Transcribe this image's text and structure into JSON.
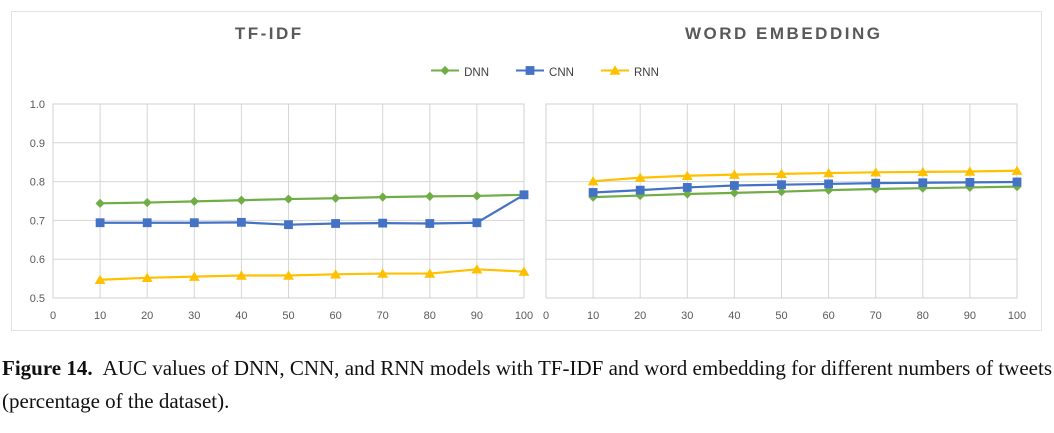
{
  "figure": {
    "caption_label": "Figure 14.",
    "caption_text": "AUC values of DNN, CNN, and RNN models with TF-IDF and word embedding for different numbers of tweets (percentage of the dataset)."
  },
  "legend": [
    {
      "name": "DNN",
      "color": "#70AD47",
      "marker": "diamond"
    },
    {
      "name": "CNN",
      "color": "#4472C4",
      "marker": "square"
    },
    {
      "name": "RNN",
      "color": "#FFC000",
      "marker": "triangle"
    }
  ],
  "colors": {
    "grid": "#d6d6d6",
    "plot_border": "#d0d0d0",
    "axis_text": "#595959",
    "title_text": "#595959"
  },
  "chart_data": [
    {
      "type": "line",
      "title": "TF-IDF",
      "xlabel": "",
      "ylabel": "",
      "x": [
        10,
        20,
        30,
        40,
        50,
        60,
        70,
        80,
        90,
        100
      ],
      "x_ticks": [
        0,
        10,
        20,
        30,
        40,
        50,
        60,
        70,
        80,
        90,
        100
      ],
      "xlim": [
        0,
        100
      ],
      "y_ticks": [
        0.5,
        0.6,
        0.7,
        0.8,
        0.9,
        1.0
      ],
      "ylim": [
        0.5,
        1.0
      ],
      "grid": true,
      "legend_position": "top-center-shared",
      "series": [
        {
          "name": "DNN",
          "color": "#70AD47",
          "marker": "diamond",
          "values": [
            0.744,
            0.746,
            0.749,
            0.752,
            0.755,
            0.757,
            0.76,
            0.762,
            0.763,
            0.766
          ]
        },
        {
          "name": "CNN",
          "color": "#4472C4",
          "marker": "square",
          "values": [
            0.694,
            0.694,
            0.694,
            0.695,
            0.689,
            0.692,
            0.693,
            0.692,
            0.694,
            0.766
          ]
        },
        {
          "name": "RNN",
          "color": "#FFC000",
          "marker": "triangle",
          "values": [
            0.547,
            0.552,
            0.555,
            0.558,
            0.558,
            0.561,
            0.563,
            0.563,
            0.574,
            0.568
          ]
        }
      ]
    },
    {
      "type": "line",
      "title": "WORD EMBEDDING",
      "xlabel": "",
      "ylabel": "",
      "x": [
        10,
        20,
        30,
        40,
        50,
        60,
        70,
        80,
        90,
        100
      ],
      "x_ticks": [
        0,
        10,
        20,
        30,
        40,
        50,
        60,
        70,
        80,
        90,
        100
      ],
      "xlim": [
        0,
        100
      ],
      "y_ticks": [
        0.5,
        0.6,
        0.7,
        0.8,
        0.9,
        1.0
      ],
      "ylim": [
        0.5,
        1.0
      ],
      "grid": true,
      "legend_position": "top-center-shared",
      "series": [
        {
          "name": "DNN",
          "color": "#70AD47",
          "marker": "diamond",
          "values": [
            0.76,
            0.764,
            0.768,
            0.771,
            0.774,
            0.778,
            0.781,
            0.783,
            0.785,
            0.787
          ]
        },
        {
          "name": "CNN",
          "color": "#4472C4",
          "marker": "square",
          "values": [
            0.772,
            0.778,
            0.785,
            0.79,
            0.792,
            0.794,
            0.796,
            0.797,
            0.798,
            0.799
          ]
        },
        {
          "name": "RNN",
          "color": "#FFC000",
          "marker": "triangle",
          "values": [
            0.801,
            0.81,
            0.815,
            0.818,
            0.82,
            0.822,
            0.824,
            0.825,
            0.826,
            0.828
          ]
        }
      ]
    }
  ]
}
